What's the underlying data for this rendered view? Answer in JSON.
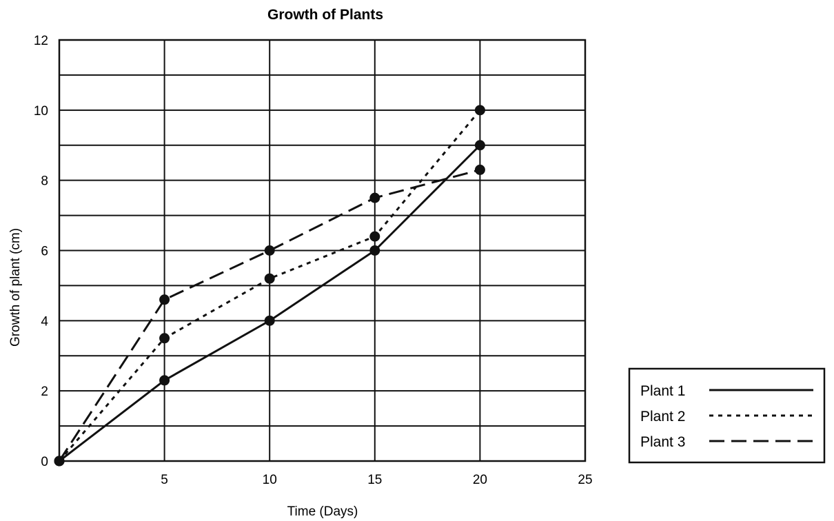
{
  "chart_data": {
    "type": "line",
    "title": "Growth of Plants",
    "xlabel": "Time (Days)",
    "ylabel": "Growth of plant (cm)",
    "xlim": [
      0,
      25
    ],
    "ylim": [
      0,
      12
    ],
    "x_ticks": [
      5,
      10,
      15,
      20,
      25
    ],
    "y_ticks": [
      0,
      2,
      4,
      6,
      8,
      10,
      12
    ],
    "grid": true,
    "legend_position": "right",
    "series": [
      {
        "name": "Plant 1",
        "style": "solid",
        "x": [
          0,
          5,
          10,
          15,
          20
        ],
        "y": [
          0,
          2.3,
          4.0,
          6.0,
          9.0
        ]
      },
      {
        "name": "Plant 2",
        "style": "dotted",
        "x": [
          0,
          5,
          10,
          15,
          20
        ],
        "y": [
          0,
          3.5,
          5.2,
          6.4,
          10.0
        ]
      },
      {
        "name": "Plant 3",
        "style": "dashed",
        "x": [
          0,
          5,
          10,
          15,
          20
        ],
        "y": [
          0,
          4.6,
          6.0,
          7.5,
          8.3
        ]
      }
    ]
  }
}
